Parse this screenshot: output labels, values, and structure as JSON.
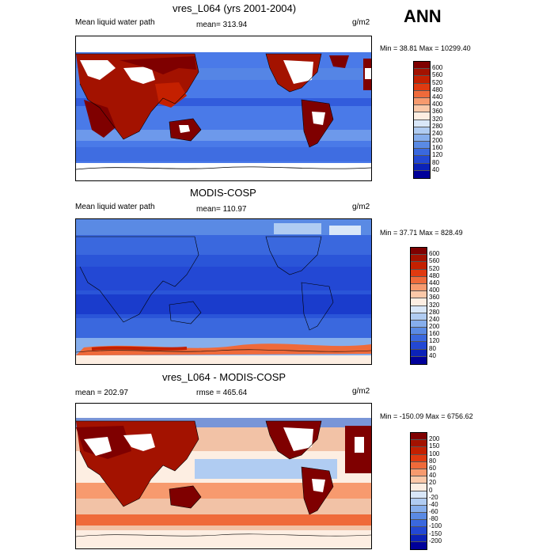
{
  "corner_label": "ANN",
  "panels": [
    {
      "title": "vres_L064 (yrs 2001-2004)",
      "left_label": "Mean liquid water path",
      "center_label": "mean= 313.94",
      "units": "g/m2",
      "minmax": "Min =  38.81 Max = 10299.40",
      "colorbar_labels": [
        "600",
        "560",
        "520",
        "480",
        "440",
        "400",
        "360",
        "320",
        "280",
        "240",
        "200",
        "160",
        "120",
        "80",
        "40"
      ]
    },
    {
      "title": "MODIS-COSP",
      "left_label": "Mean liquid water path",
      "center_label": "mean= 110.97",
      "units": "g/m2",
      "minmax": "Min =  37.71 Max = 828.49",
      "colorbar_labels": [
        "600",
        "560",
        "520",
        "480",
        "440",
        "400",
        "360",
        "320",
        "280",
        "240",
        "200",
        "160",
        "120",
        "80",
        "40"
      ]
    },
    {
      "title": "vres_L064 - MODIS-COSP",
      "left_label": "mean = 202.97",
      "center_label": "rmse = 465.64",
      "units": "g/m2",
      "minmax": "Min = -150.09 Max = 6756.62",
      "colorbar_labels": [
        "200",
        "150",
        "100",
        "80",
        "60",
        "40",
        "20",
        "0",
        "-20",
        "-40",
        "-60",
        "-80",
        "-100",
        "-150",
        "-200"
      ]
    }
  ],
  "colors": {
    "abs_scale": [
      "#7f0000",
      "#a31200",
      "#c42000",
      "#e03a10",
      "#ef6a3a",
      "#f79a6e",
      "#fbc8a8",
      "#fdeee2",
      "#d9e7f8",
      "#b0ccf2",
      "#86aeec",
      "#5a8ae4",
      "#3a68de",
      "#2348d4",
      "#0b22b8",
      "#00009a"
    ],
    "diff_scale": [
      "#7f0000",
      "#a31200",
      "#c42000",
      "#e03a10",
      "#ef6a3a",
      "#f79a6e",
      "#fbc8a8",
      "#fdeee2",
      "#d9e7f8",
      "#b0ccf2",
      "#86aeec",
      "#5a8ae4",
      "#3a68de",
      "#2348d4",
      "#0b22b8",
      "#00009a"
    ],
    "ocean_model": "#4a7ae8",
    "ocean_obs": "#2a55d8",
    "ocean_diff": "#f2c2a6"
  }
}
